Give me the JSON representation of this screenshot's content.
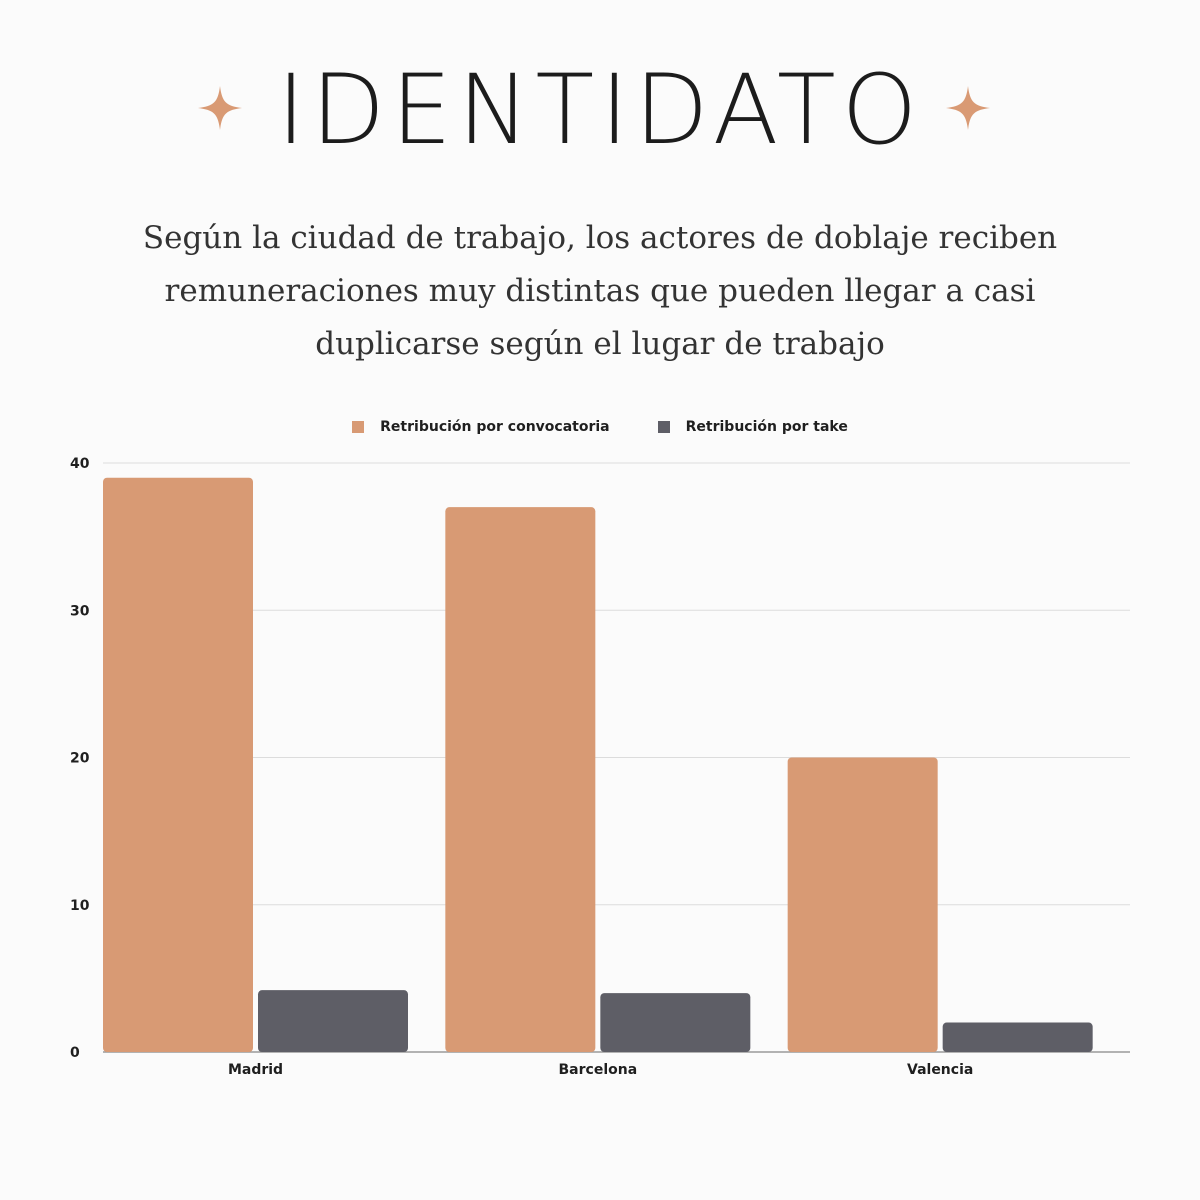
{
  "header": {
    "brand": "IDENTIDATO",
    "subtitle_lines": [
      "Según la ciudad de trabajo, los actores de doblaje reciben",
      "remuneraciones muy distintas que pueden llegar a  casi",
      "duplicarse según el lugar de trabajo"
    ],
    "sparkle_icon": "four-point-star",
    "sparkle_color": "#d99a74"
  },
  "chart_data": {
    "type": "bar",
    "categories": [
      "Madrid",
      "Barcelona",
      "Valencia"
    ],
    "series": [
      {
        "name": "Retribución por convocatoria",
        "color": "#d89a74",
        "values": [
          39,
          37,
          20
        ]
      },
      {
        "name": "Retribución por take",
        "color": "#5e5e66",
        "values": [
          4.2,
          4,
          2
        ]
      }
    ],
    "ylim": [
      0,
      40
    ],
    "yticks": [
      "0",
      "10",
      "20",
      "30",
      "40"
    ],
    "grid": true,
    "legend_position": "top-center",
    "xlabel": "",
    "ylabel": ""
  }
}
